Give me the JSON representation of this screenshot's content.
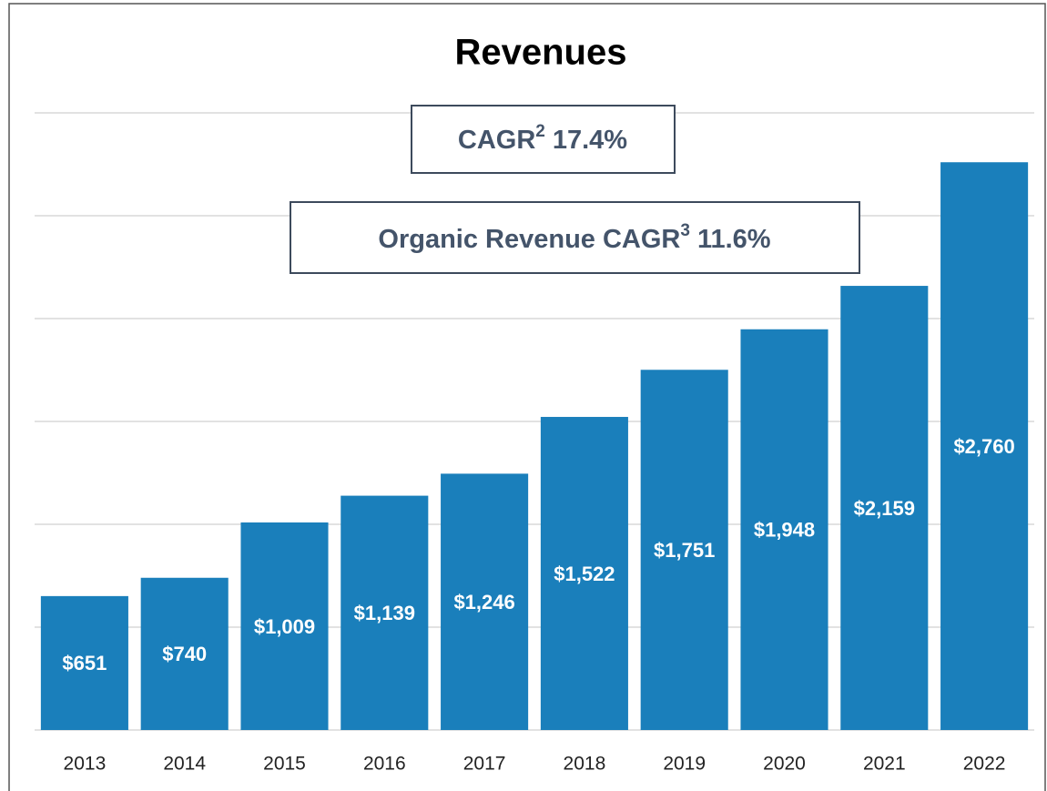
{
  "chart_data": {
    "type": "bar",
    "title": "Revenues",
    "categories": [
      "2013",
      "2014",
      "2015",
      "2016",
      "2017",
      "2018",
      "2019",
      "2020",
      "2021",
      "2022"
    ],
    "values": [
      651,
      740,
      1009,
      1139,
      1246,
      1522,
      1751,
      1948,
      2159,
      2760
    ],
    "value_labels": [
      "$651",
      "$740",
      "$1,009",
      "$1,139",
      "$1,246",
      "$1,522",
      "$1,751",
      "$1,948",
      "$2,159",
      "$2,760"
    ],
    "color": "#1a7fbb",
    "ylim": [
      0,
      3000
    ],
    "yticks": [
      0,
      500,
      1000,
      1500,
      2000,
      2500,
      3000
    ],
    "grid": true,
    "annotations": [
      {
        "text": "CAGR",
        "sup": "2",
        "value": "17.4%"
      },
      {
        "text": "Organic Revenue CAGR",
        "sup": "3",
        "value": "11.6%"
      }
    ]
  }
}
